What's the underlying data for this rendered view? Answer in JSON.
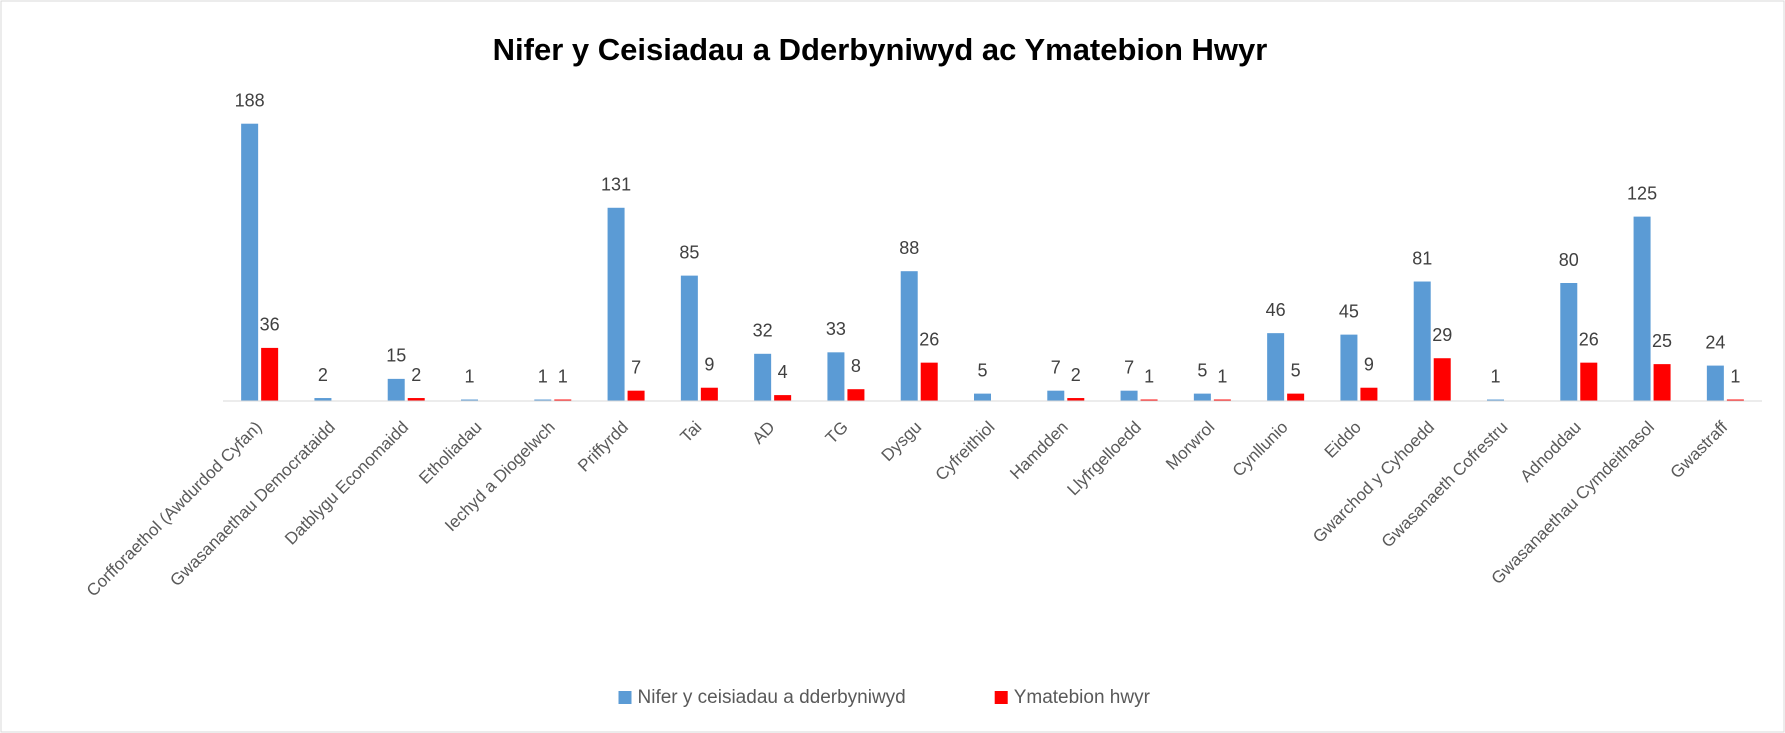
{
  "chart_data": {
    "type": "bar",
    "title": "Nifer y Ceisiadau a Dderbyniwyd ac Ymatebion Hwyr",
    "categories": [
      "Corfforaethol (Awdurdod Cyfan)",
      "Gwasanaethau Democrataidd",
      "Datblygu Economaidd",
      "Etholiadau",
      "Iechyd a Diogelwch",
      "Priffyrdd",
      "Tai",
      "AD",
      "TG",
      "Dysgu",
      "Cyfreithiol",
      "Hamdden",
      "Llyfrgelloedd",
      "Morwrol",
      "Cynllunio",
      "Eiddo",
      "Gwarchod y Cyhoedd",
      "Gwasanaeth Cofrestru",
      "Adnoddau",
      "Gwasanaethau Cymdeithasol",
      "Gwastraff"
    ],
    "series": [
      {
        "name": "Nifer y ceisiadau a dderbyniwyd",
        "color": "#5b9bd5",
        "values": [
          188,
          2,
          15,
          1,
          1,
          131,
          85,
          32,
          33,
          88,
          5,
          7,
          7,
          5,
          46,
          45,
          81,
          1,
          80,
          125,
          24
        ]
      },
      {
        "name": "Ymatebion hwyr",
        "color": "#ff0000",
        "values": [
          36,
          null,
          2,
          null,
          1,
          7,
          9,
          4,
          8,
          26,
          null,
          2,
          1,
          1,
          5,
          9,
          29,
          null,
          26,
          25,
          1
        ]
      }
    ],
    "ylim": [
      0,
      200
    ],
    "legend": "bottom"
  }
}
